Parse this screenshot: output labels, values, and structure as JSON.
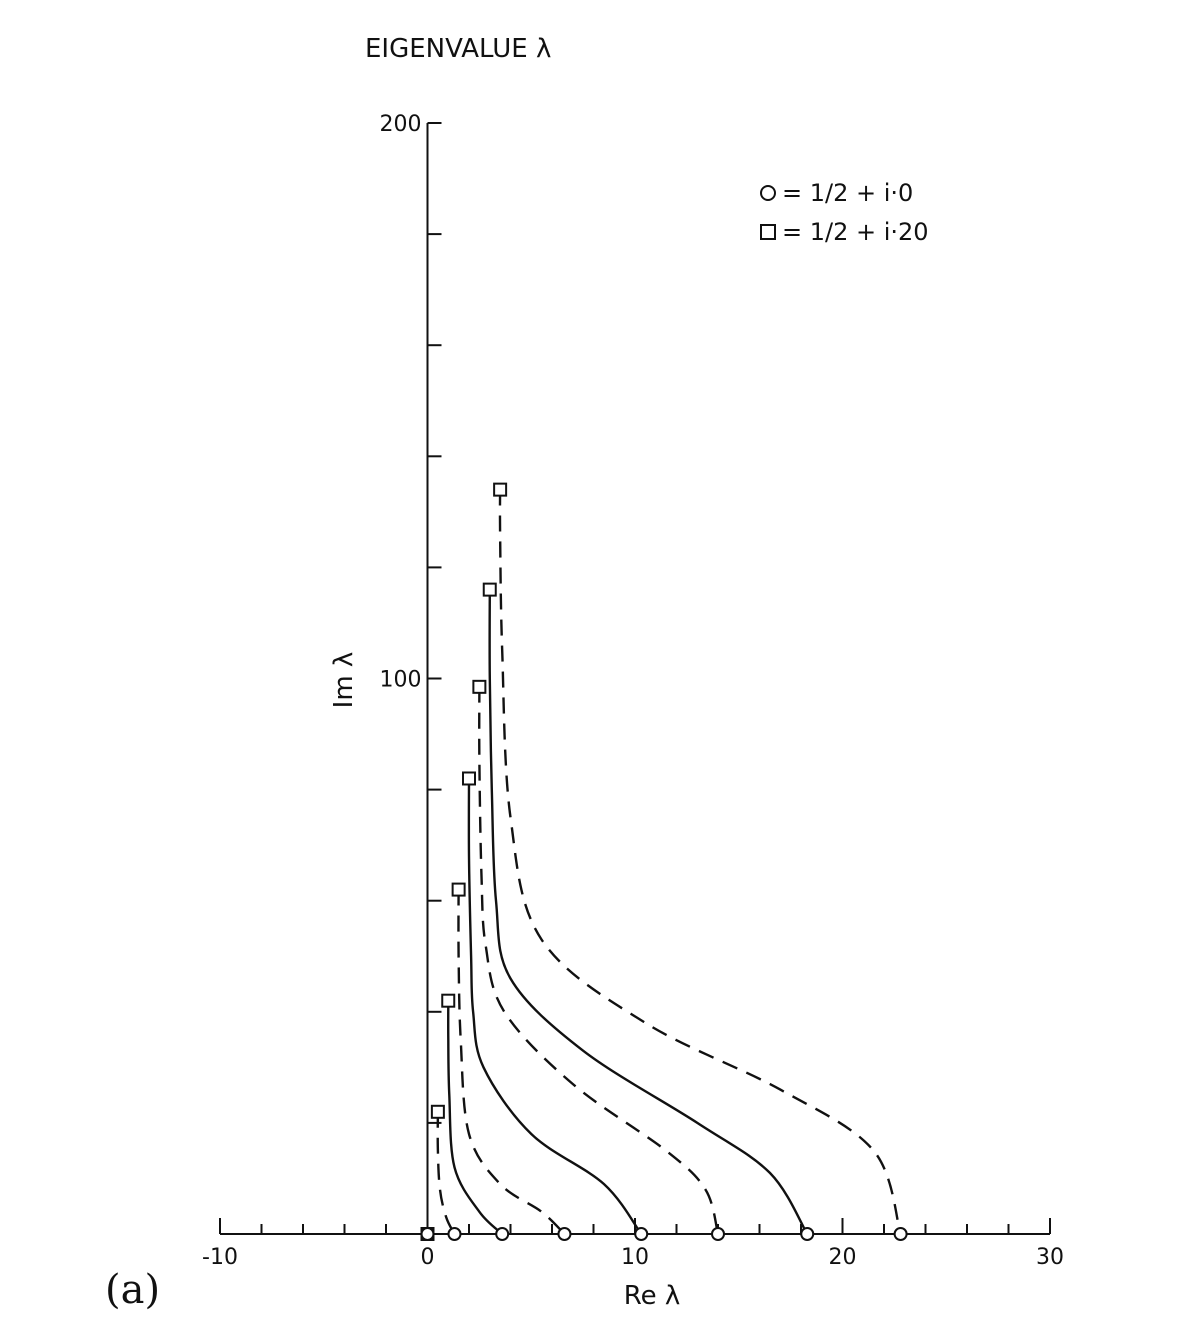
{
  "chart_data": {
    "type": "line",
    "title": "EIGENVALUE λ",
    "xlabel": "Re λ",
    "ylabel": "Im λ",
    "panel_label": "(a)",
    "xlim": [
      -10,
      30
    ],
    "ylim": [
      0,
      200
    ],
    "x_tick_labels": [
      {
        "value": -10,
        "text": "-10"
      },
      {
        "value": 0,
        "text": "0"
      },
      {
        "value": 10,
        "text": "10"
      },
      {
        "value": 20,
        "text": "20"
      },
      {
        "value": 30,
        "text": "30"
      }
    ],
    "x_minor_ticks": [
      -8,
      -6,
      -4,
      -2,
      2,
      4,
      6,
      8,
      12,
      14,
      16,
      18,
      22,
      24,
      26,
      28
    ],
    "y_tick_labels": [
      {
        "value": 100,
        "text": "100"
      },
      {
        "value": 200,
        "text": "200"
      }
    ],
    "y_minor_ticks": [
      20,
      40,
      60,
      80,
      120,
      140,
      160,
      180
    ],
    "legend": {
      "placement": "top-right",
      "entries": [
        {
          "marker": "circle",
          "text": "O = 1/2 + i·0"
        },
        {
          "marker": "square",
          "text": "□ = 1/2 + i·20"
        }
      ]
    },
    "series": [
      {
        "style": "dashed",
        "points": [
          [
            0.5,
            22.0
          ],
          [
            0.5,
            15
          ],
          [
            0.6,
            8
          ],
          [
            0.9,
            3
          ],
          [
            1.3,
            0
          ]
        ]
      },
      {
        "style": "solid",
        "points": [
          [
            1.0,
            42.0
          ],
          [
            1.0,
            35
          ],
          [
            1.05,
            25
          ],
          [
            1.3,
            12
          ],
          [
            2.5,
            4
          ],
          [
            3.6,
            0
          ]
        ]
      },
      {
        "style": "dashed",
        "points": [
          [
            1.5,
            62.0
          ],
          [
            1.5,
            50
          ],
          [
            1.6,
            35
          ],
          [
            2.0,
            18
          ],
          [
            3.5,
            9
          ],
          [
            5.5,
            4
          ],
          [
            6.6,
            0
          ]
        ]
      },
      {
        "style": "solid",
        "points": [
          [
            2.0,
            82.0
          ],
          [
            2.0,
            68
          ],
          [
            2.1,
            50
          ],
          [
            2.2,
            40
          ],
          [
            2.7,
            30
          ],
          [
            5.0,
            18
          ],
          [
            8.5,
            9
          ],
          [
            10.3,
            0
          ]
        ]
      },
      {
        "style": "dashed",
        "points": [
          [
            2.5,
            98.5
          ],
          [
            2.5,
            85
          ],
          [
            2.6,
            65
          ],
          [
            2.8,
            52
          ],
          [
            3.7,
            40
          ],
          [
            7.0,
            27
          ],
          [
            11.5,
            15
          ],
          [
            13.4,
            8
          ],
          [
            14.0,
            0
          ]
        ]
      },
      {
        "style": "solid",
        "points": [
          [
            3.0,
            116.0
          ],
          [
            3.0,
            100
          ],
          [
            3.1,
            80
          ],
          [
            3.3,
            60
          ],
          [
            4.0,
            46
          ],
          [
            7.5,
            33
          ],
          [
            13.0,
            20
          ],
          [
            16.5,
            11
          ],
          [
            18.3,
            0
          ]
        ]
      },
      {
        "style": "dashed",
        "points": [
          [
            3.5,
            134.0
          ],
          [
            3.5,
            126
          ],
          [
            3.6,
            105
          ],
          [
            4.0,
            75
          ],
          [
            5.5,
            53
          ],
          [
            10.5,
            38
          ],
          [
            17.0,
            26
          ],
          [
            21.5,
            15
          ],
          [
            22.8,
            0
          ]
        ]
      }
    ],
    "circle_markers_x": [
      0,
      1.3,
      3.6,
      6.6,
      10.3,
      14.0,
      18.3,
      22.8
    ],
    "square_markers": [
      [
        0.5,
        22.0
      ],
      [
        1.0,
        42.0
      ],
      [
        1.5,
        62.0
      ],
      [
        2.0,
        82.0
      ],
      [
        2.5,
        98.5
      ],
      [
        3.0,
        116.0
      ],
      [
        3.5,
        134.0
      ],
      [
        0,
        0
      ]
    ]
  }
}
